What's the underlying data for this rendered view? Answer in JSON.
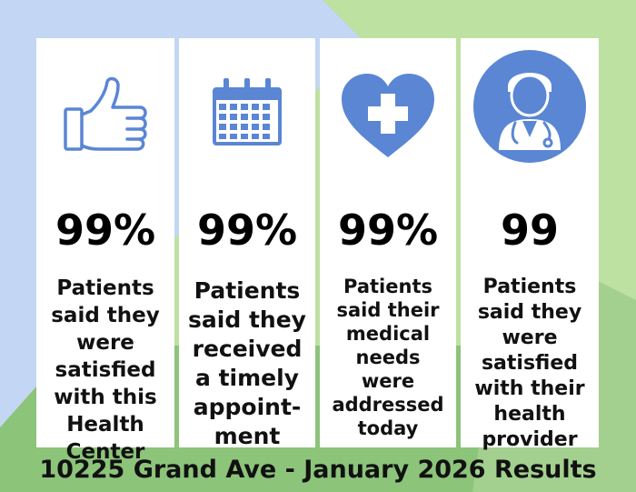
{
  "colors": {
    "accent_blue": "#5a86d4",
    "bg_light_blue": "#c3d6f3",
    "bg_light_green": "#bde1a0",
    "bg_green": "#8cc47a",
    "card": "#ffffff"
  },
  "cards": [
    {
      "icon": "thumbs-up-icon",
      "stat": "99%",
      "text": "Patients\nsaid they\nwere\nsatisfied\nwith this\nHealth\nCenter"
    },
    {
      "icon": "calendar-icon",
      "stat": "99%",
      "text": "Patients\nsaid they\nreceived\na timely\nappoint-\nment"
    },
    {
      "icon": "heart-cross-icon",
      "stat": "99%",
      "text": "Patients\nsaid their\nmedical\nneeds\nwere\naddressed\ntoday"
    },
    {
      "icon": "doctor-icon",
      "stat": "99",
      "text": "Patients\nsaid they\nwere\nsatisfied\nwith their\nhealth\nprovider"
    }
  ],
  "footer": "10225 Grand Ave - January 2026 Results"
}
